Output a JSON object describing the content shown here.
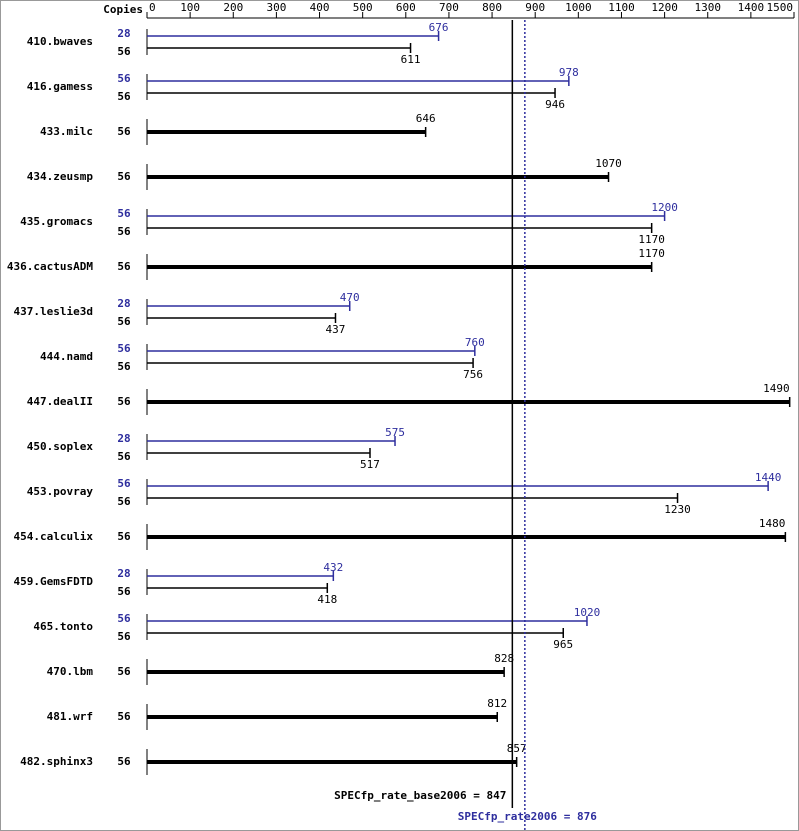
{
  "chart_data": {
    "type": "bar",
    "orientation": "horizontal",
    "copies_label": "Copies",
    "categories": [
      "410.bwaves",
      "416.gamess",
      "433.milc",
      "434.zeusmp",
      "435.gromacs",
      "436.cactusADM",
      "437.leslie3d",
      "444.namd",
      "447.dealII",
      "450.soplex",
      "453.povray",
      "454.calculix",
      "459.GemsFDTD",
      "465.tonto",
      "470.lbm",
      "481.wrf",
      "482.sphinx3"
    ],
    "series": [
      {
        "color": "#000000",
        "copies": [
          56,
          56,
          56,
          56,
          56,
          56,
          56,
          56,
          56,
          56,
          56,
          56,
          56,
          56,
          56,
          56,
          56
        ],
        "values": [
          611,
          946,
          646,
          1070,
          1170,
          1170,
          437,
          756,
          1490,
          517,
          1230,
          1480,
          418,
          965,
          828,
          812,
          857
        ]
      },
      {
        "color": "#2e2e9e",
        "copies": [
          28,
          56,
          null,
          null,
          56,
          null,
          28,
          56,
          null,
          28,
          56,
          null,
          28,
          56,
          null,
          null,
          null
        ],
        "values": [
          676,
          978,
          null,
          null,
          1200,
          null,
          470,
          760,
          null,
          575,
          1440,
          null,
          432,
          1020,
          null,
          null,
          null
        ]
      }
    ],
    "xlim": [
      0,
      1500
    ],
    "xticks": [
      0,
      100,
      200,
      300,
      400,
      500,
      600,
      700,
      800,
      900,
      1000,
      1100,
      1200,
      1300,
      1400,
      1500
    ],
    "reference_lines": [
      {
        "label": "SPECfp_rate_base2006 = 847",
        "value": 847,
        "color": "#000000",
        "style": "solid"
      },
      {
        "label": "SPECfp_rate2006 = 876",
        "value": 876,
        "color": "#2e2e9e",
        "style": "dotted"
      }
    ]
  }
}
